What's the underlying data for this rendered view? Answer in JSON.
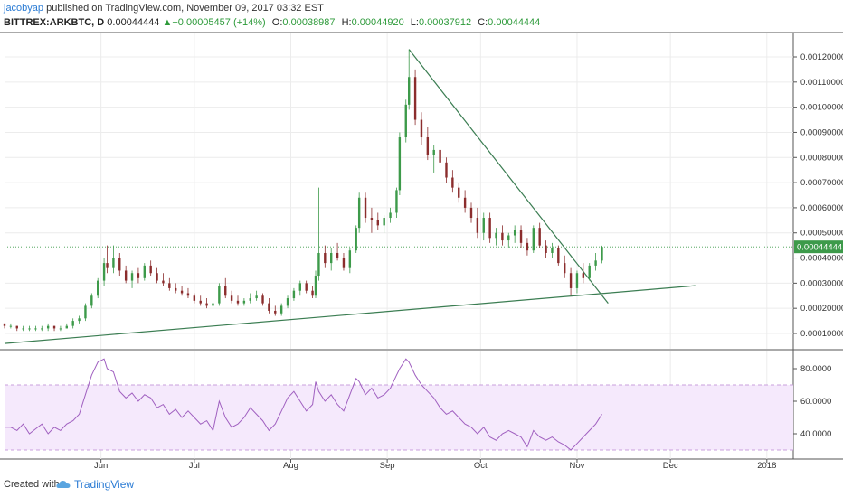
{
  "header": {
    "author": "jacobyap",
    "published_text": "published on TradingView.com, November 09, 2017 03:32 EST",
    "symbol": "BITTREX:ARKBTC, D",
    "last": "0.00044444",
    "change": "+0.00005457 (+14%)",
    "open_label": "O:",
    "open": "0.00038987",
    "high_label": "H:",
    "high": "0.00044920",
    "low_label": "L:",
    "low": "0.00037912",
    "close_label": "C:",
    "close": "0.00044444"
  },
  "footer": {
    "created_with": "Created with",
    "brand": "TradingView"
  },
  "chart_data": [
    {
      "type": "candlestick",
      "price_axis_labels": [
        "0.00120000",
        "0.00110000",
        "0.00100000",
        "0.00090000",
        "0.00080000",
        "0.00070000",
        "0.00060000",
        "0.00050000",
        "0.00040000",
        "0.00030000",
        "0.00020000",
        "0.00010000"
      ],
      "price_ticks": [
        0.0012,
        0.0011,
        0.001,
        0.0009,
        0.0008,
        0.0007,
        0.0006,
        0.0005,
        0.0004,
        0.0003,
        0.0002,
        0.0001
      ],
      "last_price_label": "0.00044444",
      "last_price": 0.00044444,
      "date_labels": [
        "Jun",
        "Jul",
        "Aug",
        "Sep",
        "Oct",
        "Nov",
        "Dec",
        "2018"
      ],
      "date_label_days": [
        31,
        61,
        92,
        123,
        153,
        184,
        214,
        245
      ],
      "colors": {
        "up": "#3d9a4a",
        "down": "#8b2d2d",
        "trendline": "#3b7d52",
        "last_price": "#3d9a4a"
      },
      "candles": [
        [
          0,
          0.00014,
          0.00014,
          0.00012,
          0.00013
        ],
        [
          2,
          0.00013,
          0.00014,
          0.00012,
          0.00013
        ],
        [
          4,
          0.00013,
          0.00013,
          0.00011,
          0.00012
        ],
        [
          6,
          0.00012,
          0.00013,
          0.00011,
          0.00012
        ],
        [
          8,
          0.00012,
          0.00013,
          0.00011,
          0.00012
        ],
        [
          10,
          0.00012,
          0.00013,
          0.00011,
          0.00012
        ],
        [
          12,
          0.00012,
          0.00013,
          0.00011,
          0.00012
        ],
        [
          14,
          0.00012,
          0.00014,
          0.00011,
          0.00013
        ],
        [
          16,
          0.00013,
          0.00013,
          0.00011,
          0.00012
        ],
        [
          18,
          0.00012,
          0.00013,
          0.00011,
          0.00012
        ],
        [
          20,
          0.00012,
          0.00014,
          0.00012,
          0.00013
        ],
        [
          22,
          0.00013,
          0.00016,
          0.00012,
          0.00015
        ],
        [
          24,
          0.00015,
          0.00017,
          0.00014,
          0.00016
        ],
        [
          26,
          0.00016,
          0.00022,
          0.00015,
          0.00021
        ],
        [
          28,
          0.00021,
          0.00026,
          0.0002,
          0.00025
        ],
        [
          30,
          0.00025,
          0.00032,
          0.00024,
          0.00031
        ],
        [
          32,
          0.00031,
          0.0004,
          0.00029,
          0.00038
        ],
        [
          33,
          0.00038,
          0.00045,
          0.00034,
          0.00036
        ],
        [
          35,
          0.00036,
          0.00045,
          0.00034,
          0.0004
        ],
        [
          37,
          0.0004,
          0.00042,
          0.00033,
          0.00035
        ],
        [
          39,
          0.00035,
          0.00037,
          0.0003,
          0.00031
        ],
        [
          41,
          0.00031,
          0.00035,
          0.00028,
          0.00034
        ],
        [
          43,
          0.00034,
          0.00036,
          0.0003,
          0.00032
        ],
        [
          45,
          0.00032,
          0.00038,
          0.00031,
          0.00037
        ],
        [
          47,
          0.00037,
          0.00039,
          0.00033,
          0.00034
        ],
        [
          49,
          0.00034,
          0.00036,
          0.0003,
          0.00031
        ],
        [
          51,
          0.00031,
          0.00034,
          0.00029,
          0.0003
        ],
        [
          53,
          0.0003,
          0.00032,
          0.00027,
          0.00028
        ],
        [
          55,
          0.00028,
          0.0003,
          0.00026,
          0.00027
        ],
        [
          57,
          0.00027,
          0.00029,
          0.00025,
          0.00026
        ],
        [
          59,
          0.00026,
          0.00028,
          0.00024,
          0.00025
        ],
        [
          61,
          0.00025,
          0.00026,
          0.00022,
          0.00023
        ],
        [
          63,
          0.00023,
          0.00025,
          0.00021,
          0.00022
        ],
        [
          65,
          0.00022,
          0.00024,
          0.0002,
          0.00021
        ],
        [
          67,
          0.00021,
          0.00023,
          0.0002,
          0.00022
        ],
        [
          69,
          0.00022,
          0.0003,
          0.00021,
          0.00029
        ],
        [
          71,
          0.00029,
          0.00032,
          0.00024,
          0.00025
        ],
        [
          73,
          0.00025,
          0.00027,
          0.00022,
          0.00023
        ],
        [
          75,
          0.00023,
          0.00025,
          0.00021,
          0.00022
        ],
        [
          77,
          0.00022,
          0.00024,
          0.00021,
          0.00023
        ],
        [
          79,
          0.00023,
          0.00026,
          0.00022,
          0.00024
        ],
        [
          81,
          0.00024,
          0.00027,
          0.00023,
          0.00025
        ],
        [
          83,
          0.00025,
          0.00026,
          0.00021,
          0.00022
        ],
        [
          85,
          0.00022,
          0.00024,
          0.00018,
          0.00019
        ],
        [
          87,
          0.00019,
          0.00021,
          0.00017,
          0.00018
        ],
        [
          89,
          0.00018,
          0.00022,
          0.00017,
          0.00021
        ],
        [
          91,
          0.00021,
          0.00025,
          0.0002,
          0.00024
        ],
        [
          93,
          0.00024,
          0.00028,
          0.00023,
          0.00027
        ],
        [
          95,
          0.00027,
          0.00031,
          0.00025,
          0.0003
        ],
        [
          97,
          0.0003,
          0.00031,
          0.00026,
          0.00027
        ],
        [
          99,
          0.00027,
          0.00029,
          0.00024,
          0.00025
        ],
        [
          100,
          0.00025,
          0.00035,
          0.00024,
          0.00033
        ],
        [
          101,
          0.00033,
          0.00068,
          0.00031,
          0.00042
        ],
        [
          103,
          0.00042,
          0.00045,
          0.00036,
          0.00038
        ],
        [
          105,
          0.00038,
          0.00044,
          0.00035,
          0.00042
        ],
        [
          107,
          0.00042,
          0.00046,
          0.00039,
          0.0004
        ],
        [
          109,
          0.0004,
          0.00042,
          0.00035,
          0.00036
        ],
        [
          111,
          0.00036,
          0.00044,
          0.00034,
          0.00043
        ],
        [
          113,
          0.00043,
          0.00053,
          0.00042,
          0.00052
        ],
        [
          114,
          0.00052,
          0.00066,
          0.0005,
          0.00064
        ],
        [
          116,
          0.00064,
          0.00066,
          0.00054,
          0.00056
        ],
        [
          118,
          0.00056,
          0.0006,
          0.0005,
          0.00055
        ],
        [
          120,
          0.00055,
          0.00058,
          0.00051,
          0.00053
        ],
        [
          122,
          0.00053,
          0.00057,
          0.0005,
          0.00056
        ],
        [
          124,
          0.00056,
          0.0006,
          0.00054,
          0.00058
        ],
        [
          126,
          0.00058,
          0.00068,
          0.00056,
          0.00067
        ],
        [
          127,
          0.00067,
          0.0009,
          0.00065,
          0.00088
        ],
        [
          129,
          0.00088,
          0.00103,
          0.00086,
          0.00101
        ],
        [
          130,
          0.00101,
          0.00123,
          0.00099,
          0.00112
        ],
        [
          132,
          0.00112,
          0.00115,
          0.00093,
          0.00095
        ],
        [
          134,
          0.00095,
          0.00098,
          0.00085,
          0.00088
        ],
        [
          136,
          0.00088,
          0.00092,
          0.00079,
          0.00081
        ],
        [
          138,
          0.00081,
          0.00085,
          0.00074,
          0.00083
        ],
        [
          140,
          0.00083,
          0.00086,
          0.00076,
          0.00078
        ],
        [
          142,
          0.00078,
          0.0008,
          0.0007,
          0.00072
        ],
        [
          144,
          0.00072,
          0.00075,
          0.00066,
          0.00068
        ],
        [
          146,
          0.00068,
          0.0007,
          0.00062,
          0.00064
        ],
        [
          148,
          0.00064,
          0.00067,
          0.00058,
          0.0006
        ],
        [
          150,
          0.0006,
          0.00062,
          0.00054,
          0.00056
        ],
        [
          152,
          0.00056,
          0.0006,
          0.00048,
          0.0005
        ],
        [
          154,
          0.0005,
          0.00058,
          0.00047,
          0.00056
        ],
        [
          156,
          0.00056,
          0.00058,
          0.00046,
          0.00048
        ],
        [
          158,
          0.00048,
          0.00052,
          0.00045,
          0.0005
        ],
        [
          160,
          0.0005,
          0.00053,
          0.00045,
          0.00047
        ],
        [
          162,
          0.00047,
          0.0005,
          0.00044,
          0.00049
        ],
        [
          164,
          0.00049,
          0.00053,
          0.00046,
          0.00051
        ],
        [
          166,
          0.00051,
          0.00053,
          0.00044,
          0.00046
        ],
        [
          168,
          0.00046,
          0.00048,
          0.00041,
          0.00043
        ],
        [
          170,
          0.00043,
          0.00053,
          0.00042,
          0.00052
        ],
        [
          172,
          0.00052,
          0.00054,
          0.00044,
          0.00045
        ],
        [
          174,
          0.00045,
          0.00047,
          0.0004,
          0.00042
        ],
        [
          176,
          0.00042,
          0.00046,
          0.0004,
          0.00044
        ],
        [
          178,
          0.00044,
          0.00045,
          0.00037,
          0.00038
        ],
        [
          180,
          0.00038,
          0.00041,
          0.00032,
          0.00034
        ],
        [
          182,
          0.00034,
          0.00036,
          0.00025,
          0.00028
        ],
        [
          184,
          0.00028,
          0.00035,
          0.00026,
          0.00034
        ],
        [
          186,
          0.00034,
          0.00038,
          0.0003,
          0.00032
        ],
        [
          188,
          0.00032,
          0.00038,
          0.00031,
          0.00037
        ],
        [
          190,
          0.00037,
          0.00042,
          0.00035,
          0.00039
        ],
        [
          192,
          0.00038987,
          0.0004492,
          0.00037912,
          0.00044444
        ]
      ],
      "trendlines": [
        {
          "name": "descending-resistance",
          "start": [
            130,
            0.00123
          ],
          "end": [
            194,
            0.00022
          ]
        },
        {
          "name": "ascending-support",
          "start": [
            0,
            6e-05
          ],
          "end": [
            222,
            0.00029
          ]
        }
      ]
    },
    {
      "type": "line",
      "indicator": "RSI",
      "y_axis_labels": [
        "80.0000",
        "60.0000",
        "40.0000"
      ],
      "y_ticks": [
        80,
        60,
        40
      ],
      "band": [
        30,
        70
      ],
      "colors": {
        "line": "#a060c0",
        "band_fill": "#f5e9fc",
        "band_edge": "#c9a0dc"
      },
      "points": [
        [
          0,
          44
        ],
        [
          2,
          44
        ],
        [
          4,
          42
        ],
        [
          6,
          46
        ],
        [
          8,
          40
        ],
        [
          10,
          43
        ],
        [
          12,
          46
        ],
        [
          14,
          40
        ],
        [
          16,
          44
        ],
        [
          18,
          42
        ],
        [
          20,
          46
        ],
        [
          22,
          48
        ],
        [
          24,
          52
        ],
        [
          26,
          64
        ],
        [
          28,
          76
        ],
        [
          30,
          84
        ],
        [
          32,
          86
        ],
        [
          33,
          80
        ],
        [
          35,
          78
        ],
        [
          37,
          66
        ],
        [
          39,
          62
        ],
        [
          41,
          65
        ],
        [
          43,
          60
        ],
        [
          45,
          64
        ],
        [
          47,
          62
        ],
        [
          49,
          56
        ],
        [
          51,
          58
        ],
        [
          53,
          52
        ],
        [
          55,
          55
        ],
        [
          57,
          50
        ],
        [
          59,
          54
        ],
        [
          61,
          50
        ],
        [
          63,
          46
        ],
        [
          65,
          48
        ],
        [
          67,
          42
        ],
        [
          69,
          60
        ],
        [
          71,
          50
        ],
        [
          73,
          44
        ],
        [
          75,
          46
        ],
        [
          77,
          50
        ],
        [
          79,
          56
        ],
        [
          81,
          52
        ],
        [
          83,
          48
        ],
        [
          85,
          42
        ],
        [
          87,
          46
        ],
        [
          89,
          54
        ],
        [
          91,
          62
        ],
        [
          93,
          66
        ],
        [
          95,
          60
        ],
        [
          97,
          54
        ],
        [
          99,
          58
        ],
        [
          100,
          72
        ],
        [
          101,
          66
        ],
        [
          103,
          60
        ],
        [
          105,
          64
        ],
        [
          107,
          58
        ],
        [
          109,
          54
        ],
        [
          111,
          64
        ],
        [
          113,
          74
        ],
        [
          114,
          72
        ],
        [
          116,
          64
        ],
        [
          118,
          68
        ],
        [
          120,
          62
        ],
        [
          122,
          64
        ],
        [
          124,
          68
        ],
        [
          126,
          76
        ],
        [
          127,
          80
        ],
        [
          129,
          86
        ],
        [
          130,
          84
        ],
        [
          132,
          76
        ],
        [
          134,
          70
        ],
        [
          136,
          66
        ],
        [
          138,
          62
        ],
        [
          140,
          56
        ],
        [
          142,
          52
        ],
        [
          144,
          54
        ],
        [
          146,
          50
        ],
        [
          148,
          46
        ],
        [
          150,
          44
        ],
        [
          152,
          40
        ],
        [
          154,
          44
        ],
        [
          156,
          38
        ],
        [
          158,
          36
        ],
        [
          160,
          40
        ],
        [
          162,
          42
        ],
        [
          164,
          40
        ],
        [
          166,
          38
        ],
        [
          168,
          32
        ],
        [
          170,
          42
        ],
        [
          172,
          38
        ],
        [
          174,
          36
        ],
        [
          176,
          38
        ],
        [
          178,
          35
        ],
        [
          180,
          33
        ],
        [
          182,
          30
        ],
        [
          184,
          34
        ],
        [
          186,
          38
        ],
        [
          188,
          42
        ],
        [
          190,
          46
        ],
        [
          192,
          52
        ]
      ]
    }
  ]
}
